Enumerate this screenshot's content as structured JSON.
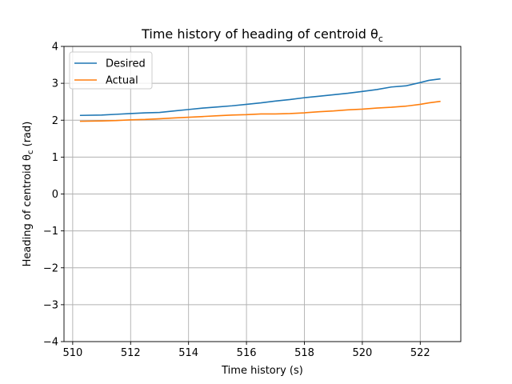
{
  "chart_data": {
    "type": "line",
    "title": "Time history of heading of centroid θ",
    "title_subscript": "c",
    "xlabel": "Time history (s)",
    "ylabel": "Heading of centroid θ",
    "ylabel_subscript": "c",
    "ylabel_suffix": " (rad)",
    "xlim": [
      509.7,
      523.4
    ],
    "ylim": [
      -4,
      4
    ],
    "xticks": [
      510,
      512,
      514,
      516,
      518,
      520,
      522
    ],
    "xtick_labels": [
      "510",
      "512",
      "514",
      "516",
      "518",
      "520",
      "522"
    ],
    "yticks": [
      -4,
      -3,
      -2,
      -1,
      0,
      1,
      2,
      3,
      4
    ],
    "ytick_labels": [
      "−4",
      "−3",
      "−2",
      "−1",
      "0",
      "1",
      "2",
      "3",
      "4"
    ],
    "grid": true,
    "legend_position": "top-left",
    "series": [
      {
        "name": "Desired",
        "color": "#1f77b4",
        "x": [
          510.25,
          511.0,
          511.5,
          512.0,
          512.5,
          513.0,
          513.5,
          514.0,
          514.5,
          515.0,
          515.5,
          516.0,
          516.5,
          517.0,
          517.5,
          518.0,
          518.5,
          519.0,
          519.5,
          520.0,
          520.5,
          521.0,
          521.5,
          522.0,
          522.3,
          522.7
        ],
        "y": [
          2.13,
          2.14,
          2.16,
          2.18,
          2.2,
          2.21,
          2.25,
          2.29,
          2.33,
          2.36,
          2.39,
          2.43,
          2.47,
          2.52,
          2.56,
          2.61,
          2.65,
          2.69,
          2.73,
          2.78,
          2.83,
          2.9,
          2.93,
          3.02,
          3.08,
          3.12
        ]
      },
      {
        "name": "Actual",
        "color": "#ff7f0e",
        "x": [
          510.25,
          511.0,
          511.5,
          512.0,
          512.5,
          513.0,
          513.5,
          514.0,
          514.5,
          515.0,
          515.5,
          516.0,
          516.5,
          517.0,
          517.5,
          518.0,
          518.5,
          519.0,
          519.5,
          520.0,
          520.5,
          521.0,
          521.5,
          522.0,
          522.3,
          522.7
        ],
        "y": [
          1.97,
          1.98,
          1.99,
          2.01,
          2.02,
          2.04,
          2.06,
          2.08,
          2.1,
          2.12,
          2.14,
          2.15,
          2.17,
          2.17,
          2.18,
          2.2,
          2.23,
          2.25,
          2.28,
          2.3,
          2.33,
          2.35,
          2.38,
          2.43,
          2.47,
          2.51
        ]
      }
    ]
  }
}
